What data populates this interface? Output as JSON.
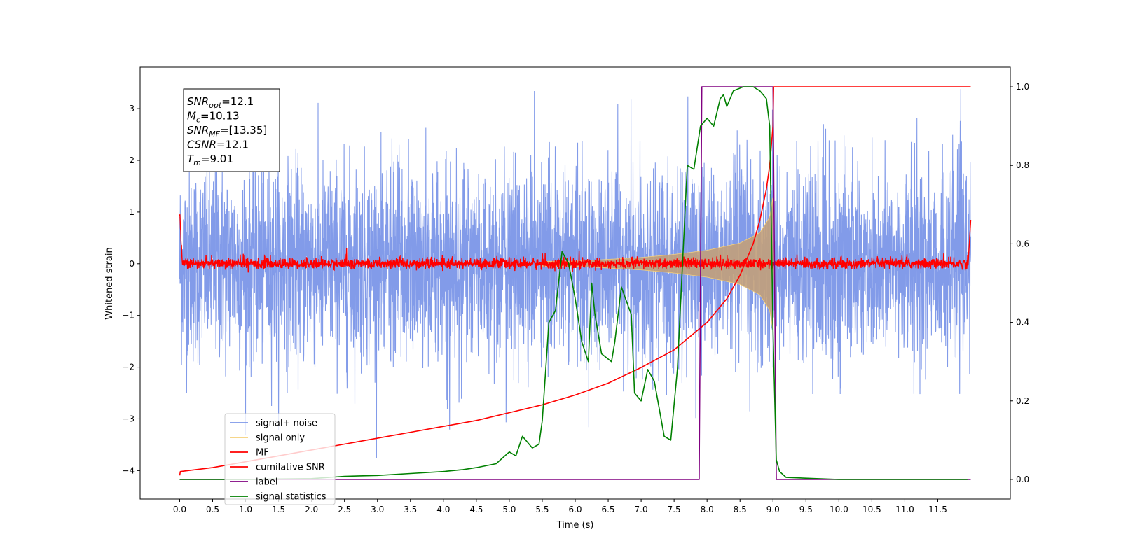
{
  "chart_data": {
    "type": "line",
    "xlabel": "Time (s)",
    "ylabel": "Whitened strain",
    "xlim": [
      -0.6,
      12.6
    ],
    "ylim": [
      -4.55,
      3.8
    ],
    "y2lim": [
      -0.05,
      1.05
    ],
    "x_ticks": [
      0.0,
      0.5,
      1.0,
      1.5,
      2.0,
      2.5,
      3.0,
      3.5,
      4.0,
      4.5,
      5.0,
      5.5,
      6.0,
      6.5,
      7.0,
      7.5,
      8.0,
      8.5,
      9.0,
      9.5,
      10.0,
      10.5,
      11.0,
      11.5
    ],
    "x_tick_labels": [
      "0.0",
      "0.5",
      "1.0",
      "1.5",
      "2.0",
      "2.5",
      "3.0",
      "3.5",
      "4.0",
      "4.5",
      "5.0",
      "5.5",
      "6.0",
      "6.5",
      "7.0",
      "7.5",
      "8.0",
      "8.5",
      "9.0",
      "9.5",
      "10.0",
      "10.5",
      "11.0",
      "11.5"
    ],
    "y_ticks": [
      -4,
      -3,
      -2,
      -1,
      0,
      1,
      2,
      3
    ],
    "y_tick_labels": [
      "−4",
      "−3",
      "−2",
      "−1",
      "0",
      "1",
      "2",
      "3"
    ],
    "y2_ticks": [
      0.0,
      0.2,
      0.4,
      0.6,
      0.8,
      1.0
    ],
    "y2_tick_labels": [
      "0.0",
      "0.2",
      "0.4",
      "0.6",
      "0.8",
      "1.0"
    ],
    "annotation": [
      {
        "base": "SNR",
        "sub": "opt",
        "value": "=12.1"
      },
      {
        "base": "M",
        "sub": "c",
        "value": "=10.13"
      },
      {
        "base": "SNR",
        "sub": "MF",
        "value": "=[13.35]"
      },
      {
        "base": "CSNR",
        "sub": "",
        "value": "=12.1"
      },
      {
        "base": "T",
        "sub": "m",
        "value": "=9.01"
      }
    ],
    "legend_position": "lower-left",
    "series": [
      {
        "name": "signal+ noise",
        "color": "#7b96e8",
        "axis": "left",
        "kind": "noise",
        "x_range": [
          0.0,
          12.0
        ],
        "amplitude": [
          -3.8,
          3.45
        ]
      },
      {
        "name": "signal only",
        "color": "#f5d07a",
        "fill_color": "#c2a07a",
        "axis": "left",
        "kind": "chirp",
        "x": [
          0.0,
          6.0,
          7.0,
          7.5,
          8.0,
          8.5,
          8.8,
          8.95,
          9.0,
          9.01
        ],
        "envelope": [
          0.0,
          0.05,
          0.12,
          0.18,
          0.26,
          0.4,
          0.6,
          0.9,
          1.3,
          0.0
        ]
      },
      {
        "name": "MF",
        "color": "#ff0000",
        "axis": "left",
        "kind": "mf",
        "x_range": [
          0.0,
          12.0
        ],
        "amplitude": [
          -0.1,
          0.2
        ]
      },
      {
        "name": "cumilative SNR",
        "color": "#ff0000",
        "axis": "right",
        "x": [
          0.0,
          0.01,
          0.5,
          1.0,
          1.5,
          2.0,
          2.5,
          3.0,
          3.5,
          4.0,
          4.5,
          5.0,
          5.5,
          6.0,
          6.5,
          7.0,
          7.5,
          8.0,
          8.3,
          8.5,
          8.7,
          8.8,
          8.9,
          8.95,
          9.0,
          9.01,
          9.1,
          10.0,
          11.0,
          12.0
        ],
        "y": [
          0.01,
          0.02,
          0.03,
          0.045,
          0.06,
          0.075,
          0.09,
          0.105,
          0.12,
          0.135,
          0.15,
          0.17,
          0.19,
          0.215,
          0.245,
          0.285,
          0.33,
          0.4,
          0.46,
          0.52,
          0.6,
          0.66,
          0.74,
          0.8,
          0.9,
          1.0,
          1.0,
          1.0,
          1.0,
          1.0
        ]
      },
      {
        "name": "label",
        "color": "#800080",
        "axis": "right",
        "x": [
          0.0,
          7.88,
          7.92,
          9.0,
          9.05,
          12.0
        ],
        "y": [
          0.0,
          0.0,
          1.0,
          1.0,
          0.0,
          0.0
        ]
      },
      {
        "name": "signal statistics",
        "color": "#008000",
        "axis": "right",
        "x": [
          0.0,
          1.0,
          2.0,
          2.5,
          3.0,
          3.5,
          4.0,
          4.3,
          4.5,
          4.8,
          5.0,
          5.1,
          5.2,
          5.35,
          5.45,
          5.5,
          5.6,
          5.7,
          5.8,
          5.9,
          6.0,
          6.1,
          6.2,
          6.25,
          6.3,
          6.4,
          6.55,
          6.6,
          6.7,
          6.85,
          6.9,
          7.0,
          7.1,
          7.2,
          7.35,
          7.45,
          7.55,
          7.7,
          7.8,
          7.9,
          8.0,
          8.1,
          8.2,
          8.25,
          8.3,
          8.4,
          8.55,
          8.7,
          8.8,
          8.9,
          8.95,
          9.0,
          9.05,
          9.1,
          9.2,
          10.0,
          11.0,
          11.95
        ],
        "y": [
          0.0,
          0.0,
          0.002,
          0.008,
          0.01,
          0.015,
          0.02,
          0.025,
          0.03,
          0.04,
          0.07,
          0.06,
          0.11,
          0.08,
          0.09,
          0.15,
          0.4,
          0.43,
          0.58,
          0.55,
          0.46,
          0.35,
          0.3,
          0.5,
          0.42,
          0.32,
          0.3,
          0.35,
          0.49,
          0.42,
          0.22,
          0.2,
          0.28,
          0.25,
          0.11,
          0.1,
          0.28,
          0.8,
          0.79,
          0.9,
          0.92,
          0.9,
          0.97,
          0.98,
          0.95,
          0.99,
          1.0,
          1.0,
          0.99,
          0.97,
          0.9,
          0.38,
          0.05,
          0.02,
          0.005,
          0.0,
          0.0,
          0.0
        ]
      }
    ]
  }
}
